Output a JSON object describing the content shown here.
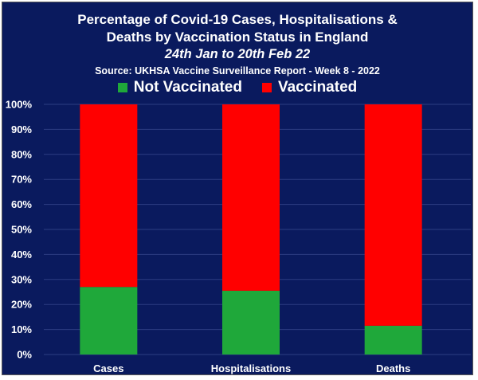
{
  "title_lines": [
    "Percentage of Covid-19 Cases, Hospitalisations &",
    "Deaths by Vaccination Status in England",
    "24th Jan to 20th Feb 22",
    "Source: UKHSA Vaccine Surveillance Report - Week 8 - 2022"
  ],
  "chart_data": {
    "type": "bar",
    "stacked": true,
    "categories": [
      "Cases",
      "Hospitalisations",
      "Deaths"
    ],
    "series": [
      {
        "name": "Not Vaccinated",
        "color": "#1fa83a",
        "values": [
          27,
          25.5,
          11.5
        ]
      },
      {
        "name": "Vaccinated",
        "color": "#ff0000",
        "values": [
          73,
          74.5,
          88.5
        ]
      }
    ],
    "ylim": [
      0,
      100
    ],
    "y_ticks": [
      0,
      10,
      20,
      30,
      40,
      50,
      60,
      70,
      80,
      90,
      100
    ],
    "y_tick_suffix": "%",
    "grid": true,
    "legend": "top-center",
    "background": "#0a1a5e",
    "gridline_color": "#2c3d82"
  }
}
